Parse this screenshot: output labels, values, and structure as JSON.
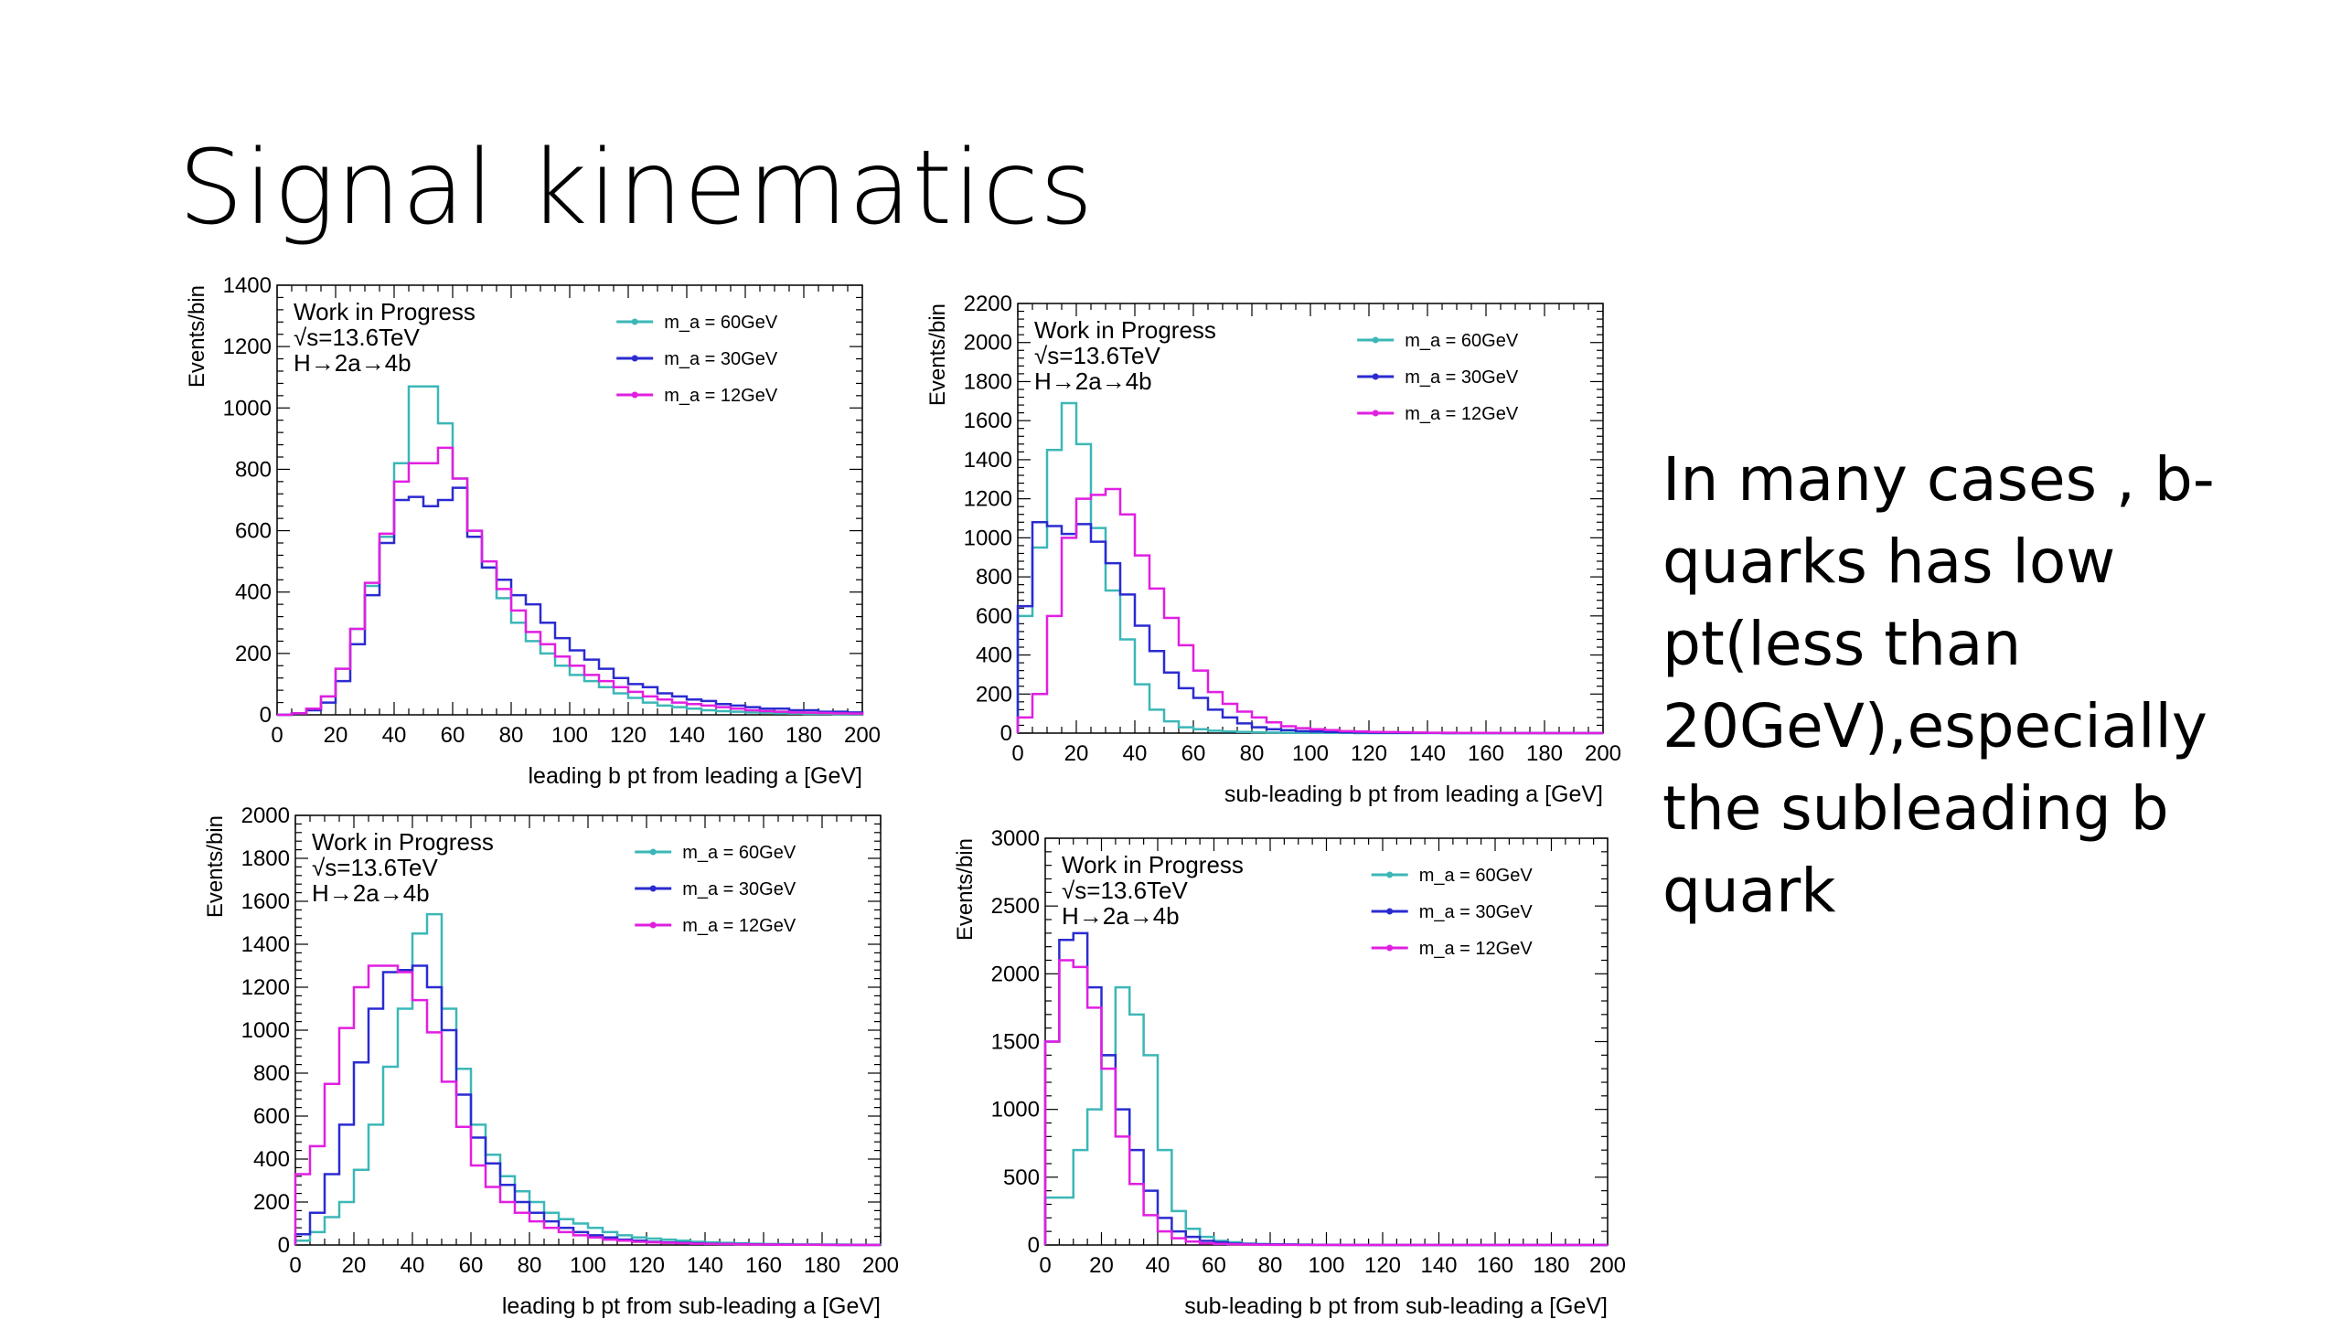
{
  "slide": {
    "title": "Signal kinematics",
    "notes": [
      "In many cases , b-",
      "quarks has low",
      "pt(less than",
      "20GeV),especially",
      "the subleading b",
      "quark"
    ]
  },
  "chart_data": [
    {
      "type": "line",
      "xlabel": "leading b pt from leading a [GeV]",
      "ylabel": "Events/bin",
      "xlim": [
        0,
        200
      ],
      "ylim": [
        0,
        1400
      ],
      "xticks": [
        0,
        20,
        40,
        60,
        80,
        100,
        120,
        140,
        160,
        180,
        200
      ],
      "yticks": [
        0,
        200,
        400,
        600,
        800,
        1000,
        1200,
        1400
      ],
      "annotations": [
        "Work in Progress",
        "√s=13.6TeV",
        "H→2a→4b"
      ],
      "legend_position": "top-right",
      "series": [
        {
          "name": "m_a = 60GeV",
          "color": "#3cb7b7",
          "values": [
            0,
            5,
            20,
            60,
            150,
            280,
            420,
            580,
            820,
            1070,
            1070,
            950,
            770,
            600,
            480,
            380,
            300,
            240,
            200,
            160,
            130,
            110,
            90,
            70,
            55,
            40,
            30,
            25,
            20,
            15,
            12,
            10,
            8,
            7,
            5,
            4,
            3,
            3,
            2,
            2
          ]
        },
        {
          "name": "m_a = 30GeV",
          "color": "#2b2bd1",
          "values": [
            0,
            5,
            15,
            40,
            110,
            230,
            390,
            560,
            700,
            710,
            680,
            700,
            740,
            580,
            480,
            440,
            390,
            360,
            300,
            250,
            210,
            180,
            150,
            120,
            100,
            90,
            70,
            60,
            50,
            45,
            35,
            30,
            25,
            20,
            20,
            15,
            15,
            10,
            10,
            8
          ]
        },
        {
          "name": "m_a = 12GeV",
          "color": "#e11fe1",
          "values": [
            0,
            5,
            20,
            60,
            150,
            280,
            430,
            590,
            760,
            820,
            820,
            870,
            770,
            600,
            500,
            410,
            340,
            270,
            230,
            190,
            160,
            130,
            110,
            90,
            75,
            60,
            50,
            40,
            35,
            30,
            25,
            20,
            15,
            12,
            10,
            8,
            7,
            6,
            5,
            4
          ]
        }
      ]
    },
    {
      "type": "line",
      "xlabel": "sub-leading b pt from leading a [GeV]",
      "ylabel": "Events/bin",
      "xlim": [
        0,
        200
      ],
      "ylim": [
        0,
        2200
      ],
      "xticks": [
        0,
        20,
        40,
        60,
        80,
        100,
        120,
        140,
        160,
        180,
        200
      ],
      "yticks": [
        0,
        200,
        400,
        600,
        800,
        1000,
        1200,
        1400,
        1600,
        1800,
        2000,
        2200
      ],
      "annotations": [
        "Work in Progress",
        "√s=13.6TeV",
        "H→2a→4b"
      ],
      "legend_position": "top-right",
      "series": [
        {
          "name": "m_a = 60GeV",
          "color": "#3cb7b7",
          "values": [
            600,
            950,
            1450,
            1690,
            1480,
            1050,
            730,
            480,
            250,
            120,
            60,
            30,
            20,
            12,
            8,
            6,
            4,
            3,
            2,
            2,
            1,
            1,
            1,
            0,
            0,
            0,
            0,
            0,
            0,
            0,
            0,
            0,
            0,
            0,
            0,
            0,
            0,
            0,
            0,
            0
          ]
        },
        {
          "name": "m_a = 30GeV",
          "color": "#2b2bd1",
          "values": [
            650,
            1080,
            1060,
            1020,
            1070,
            980,
            870,
            710,
            550,
            420,
            310,
            230,
            180,
            120,
            80,
            50,
            30,
            20,
            15,
            10,
            8,
            6,
            4,
            3,
            2,
            2,
            1,
            1,
            1,
            0,
            0,
            0,
            0,
            0,
            0,
            0,
            0,
            0,
            0,
            0
          ]
        },
        {
          "name": "m_a = 12GeV",
          "color": "#e11fe1",
          "values": [
            80,
            200,
            600,
            1000,
            1200,
            1220,
            1250,
            1120,
            910,
            740,
            590,
            450,
            320,
            210,
            150,
            110,
            80,
            55,
            35,
            25,
            20,
            15,
            10,
            8,
            6,
            5,
            4,
            3,
            2,
            2,
            1,
            1,
            1,
            0,
            0,
            0,
            0,
            0,
            0,
            0
          ]
        }
      ]
    },
    {
      "type": "line",
      "xlabel": "leading b pt from sub-leading a [GeV]",
      "ylabel": "Events/bin",
      "xlim": [
        0,
        200
      ],
      "ylim": [
        0,
        2000
      ],
      "xticks": [
        0,
        20,
        40,
        60,
        80,
        100,
        120,
        140,
        160,
        180,
        200
      ],
      "yticks": [
        0,
        200,
        400,
        600,
        800,
        1000,
        1200,
        1400,
        1600,
        1800,
        2000
      ],
      "annotations": [
        "Work in Progress",
        "√s=13.6TeV",
        "H→2a→4b"
      ],
      "legend_position": "top-right",
      "series": [
        {
          "name": "m_a = 60GeV",
          "color": "#3cb7b7",
          "values": [
            20,
            60,
            130,
            200,
            350,
            560,
            830,
            1100,
            1450,
            1540,
            1100,
            820,
            560,
            420,
            320,
            250,
            200,
            150,
            120,
            100,
            80,
            60,
            45,
            35,
            30,
            25,
            20,
            15,
            12,
            10,
            8,
            6,
            5,
            4,
            3,
            3,
            2,
            2,
            1,
            1
          ]
        },
        {
          "name": "m_a = 30GeV",
          "color": "#2b2bd1",
          "values": [
            50,
            150,
            330,
            560,
            850,
            1100,
            1270,
            1280,
            1300,
            1200,
            1000,
            700,
            500,
            380,
            280,
            200,
            150,
            110,
            80,
            60,
            45,
            35,
            25,
            20,
            15,
            12,
            10,
            8,
            6,
            5,
            4,
            3,
            2,
            2,
            1,
            1,
            1,
            0,
            0,
            0
          ]
        },
        {
          "name": "m_a = 12GeV",
          "color": "#e11fe1",
          "values": [
            330,
            460,
            750,
            1010,
            1200,
            1300,
            1300,
            1270,
            1140,
            990,
            760,
            550,
            370,
            270,
            200,
            150,
            110,
            80,
            60,
            45,
            35,
            25,
            20,
            15,
            12,
            10,
            8,
            6,
            5,
            4,
            3,
            2,
            2,
            1,
            1,
            1,
            0,
            0,
            0,
            0
          ]
        }
      ]
    },
    {
      "type": "line",
      "xlabel": "sub-leading b pt from sub-leading a [GeV]",
      "ylabel": "Events/bin",
      "xlim": [
        0,
        200
      ],
      "ylim": [
        0,
        3000
      ],
      "xticks": [
        0,
        20,
        40,
        60,
        80,
        100,
        120,
        140,
        160,
        180,
        200
      ],
      "yticks": [
        0,
        500,
        1000,
        1500,
        2000,
        2500,
        3000
      ],
      "annotations": [
        "Work in Progress",
        "√s=13.6TeV",
        "H→2a→4b"
      ],
      "legend_position": "top-right",
      "series": [
        {
          "name": "m_a = 60GeV",
          "color": "#3cb7b7",
          "values": [
            350,
            350,
            700,
            1000,
            1400,
            1900,
            1700,
            1400,
            700,
            250,
            120,
            60,
            30,
            20,
            10,
            8,
            5,
            4,
            3,
            2,
            1,
            1,
            1,
            0,
            0,
            0,
            0,
            0,
            0,
            0,
            0,
            0,
            0,
            0,
            0,
            0,
            0,
            0,
            0,
            0
          ]
        },
        {
          "name": "m_a = 30GeV",
          "color": "#2b2bd1",
          "values": [
            1500,
            2250,
            2300,
            1900,
            1400,
            1000,
            700,
            400,
            200,
            100,
            60,
            30,
            20,
            10,
            8,
            5,
            4,
            3,
            2,
            1,
            1,
            0,
            0,
            0,
            0,
            0,
            0,
            0,
            0,
            0,
            0,
            0,
            0,
            0,
            0,
            0,
            0,
            0,
            0,
            0
          ]
        },
        {
          "name": "m_a = 12GeV",
          "color": "#e11fe1",
          "values": [
            1500,
            2100,
            2050,
            1750,
            1300,
            800,
            450,
            220,
            100,
            50,
            25,
            12,
            8,
            5,
            3,
            2,
            1,
            1,
            0,
            0,
            0,
            0,
            0,
            0,
            0,
            0,
            0,
            0,
            0,
            0,
            0,
            0,
            0,
            0,
            0,
            0,
            0,
            0,
            0,
            0
          ]
        }
      ]
    }
  ]
}
